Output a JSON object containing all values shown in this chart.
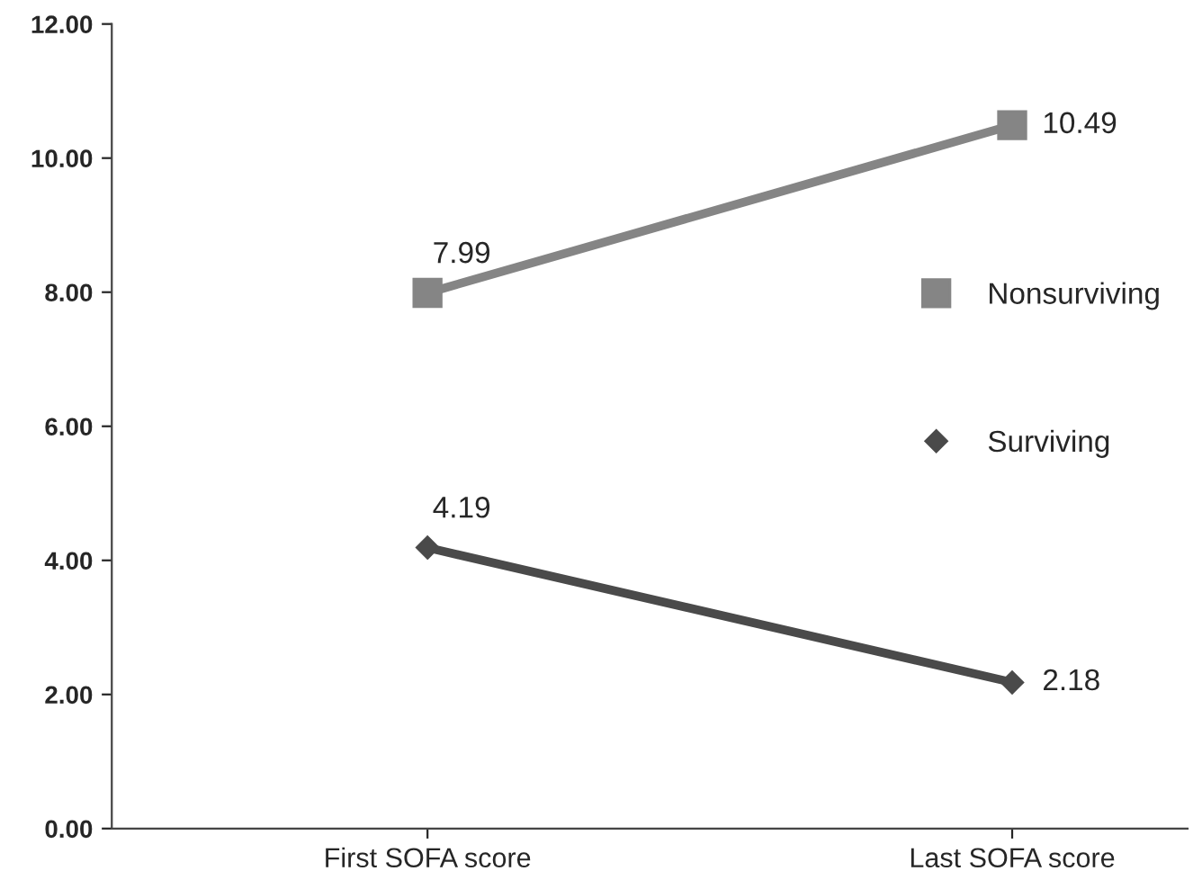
{
  "chart_data": {
    "type": "line",
    "categories": [
      "First SOFA score",
      "Last SOFA score"
    ],
    "series": [
      {
        "name": "Nonsurviving",
        "color": "#858585",
        "values": [
          7.99,
          10.49
        ],
        "marker": "square"
      },
      {
        "name": "Surviving",
        "color": "#4a4a4a",
        "values": [
          4.19,
          2.18
        ],
        "marker": "diamond"
      }
    ],
    "ylim": [
      0,
      12
    ],
    "yticks": [
      {
        "value": 0,
        "label": "0.00"
      },
      {
        "value": 2,
        "label": "2.00"
      },
      {
        "value": 4,
        "label": "4.00"
      },
      {
        "value": 6,
        "label": "6.00"
      },
      {
        "value": 8,
        "label": "8.00"
      },
      {
        "value": 10,
        "label": "10.00"
      },
      {
        "value": 12,
        "label": "12.00"
      }
    ],
    "data_labels": true,
    "legend": "right",
    "grid": false
  }
}
